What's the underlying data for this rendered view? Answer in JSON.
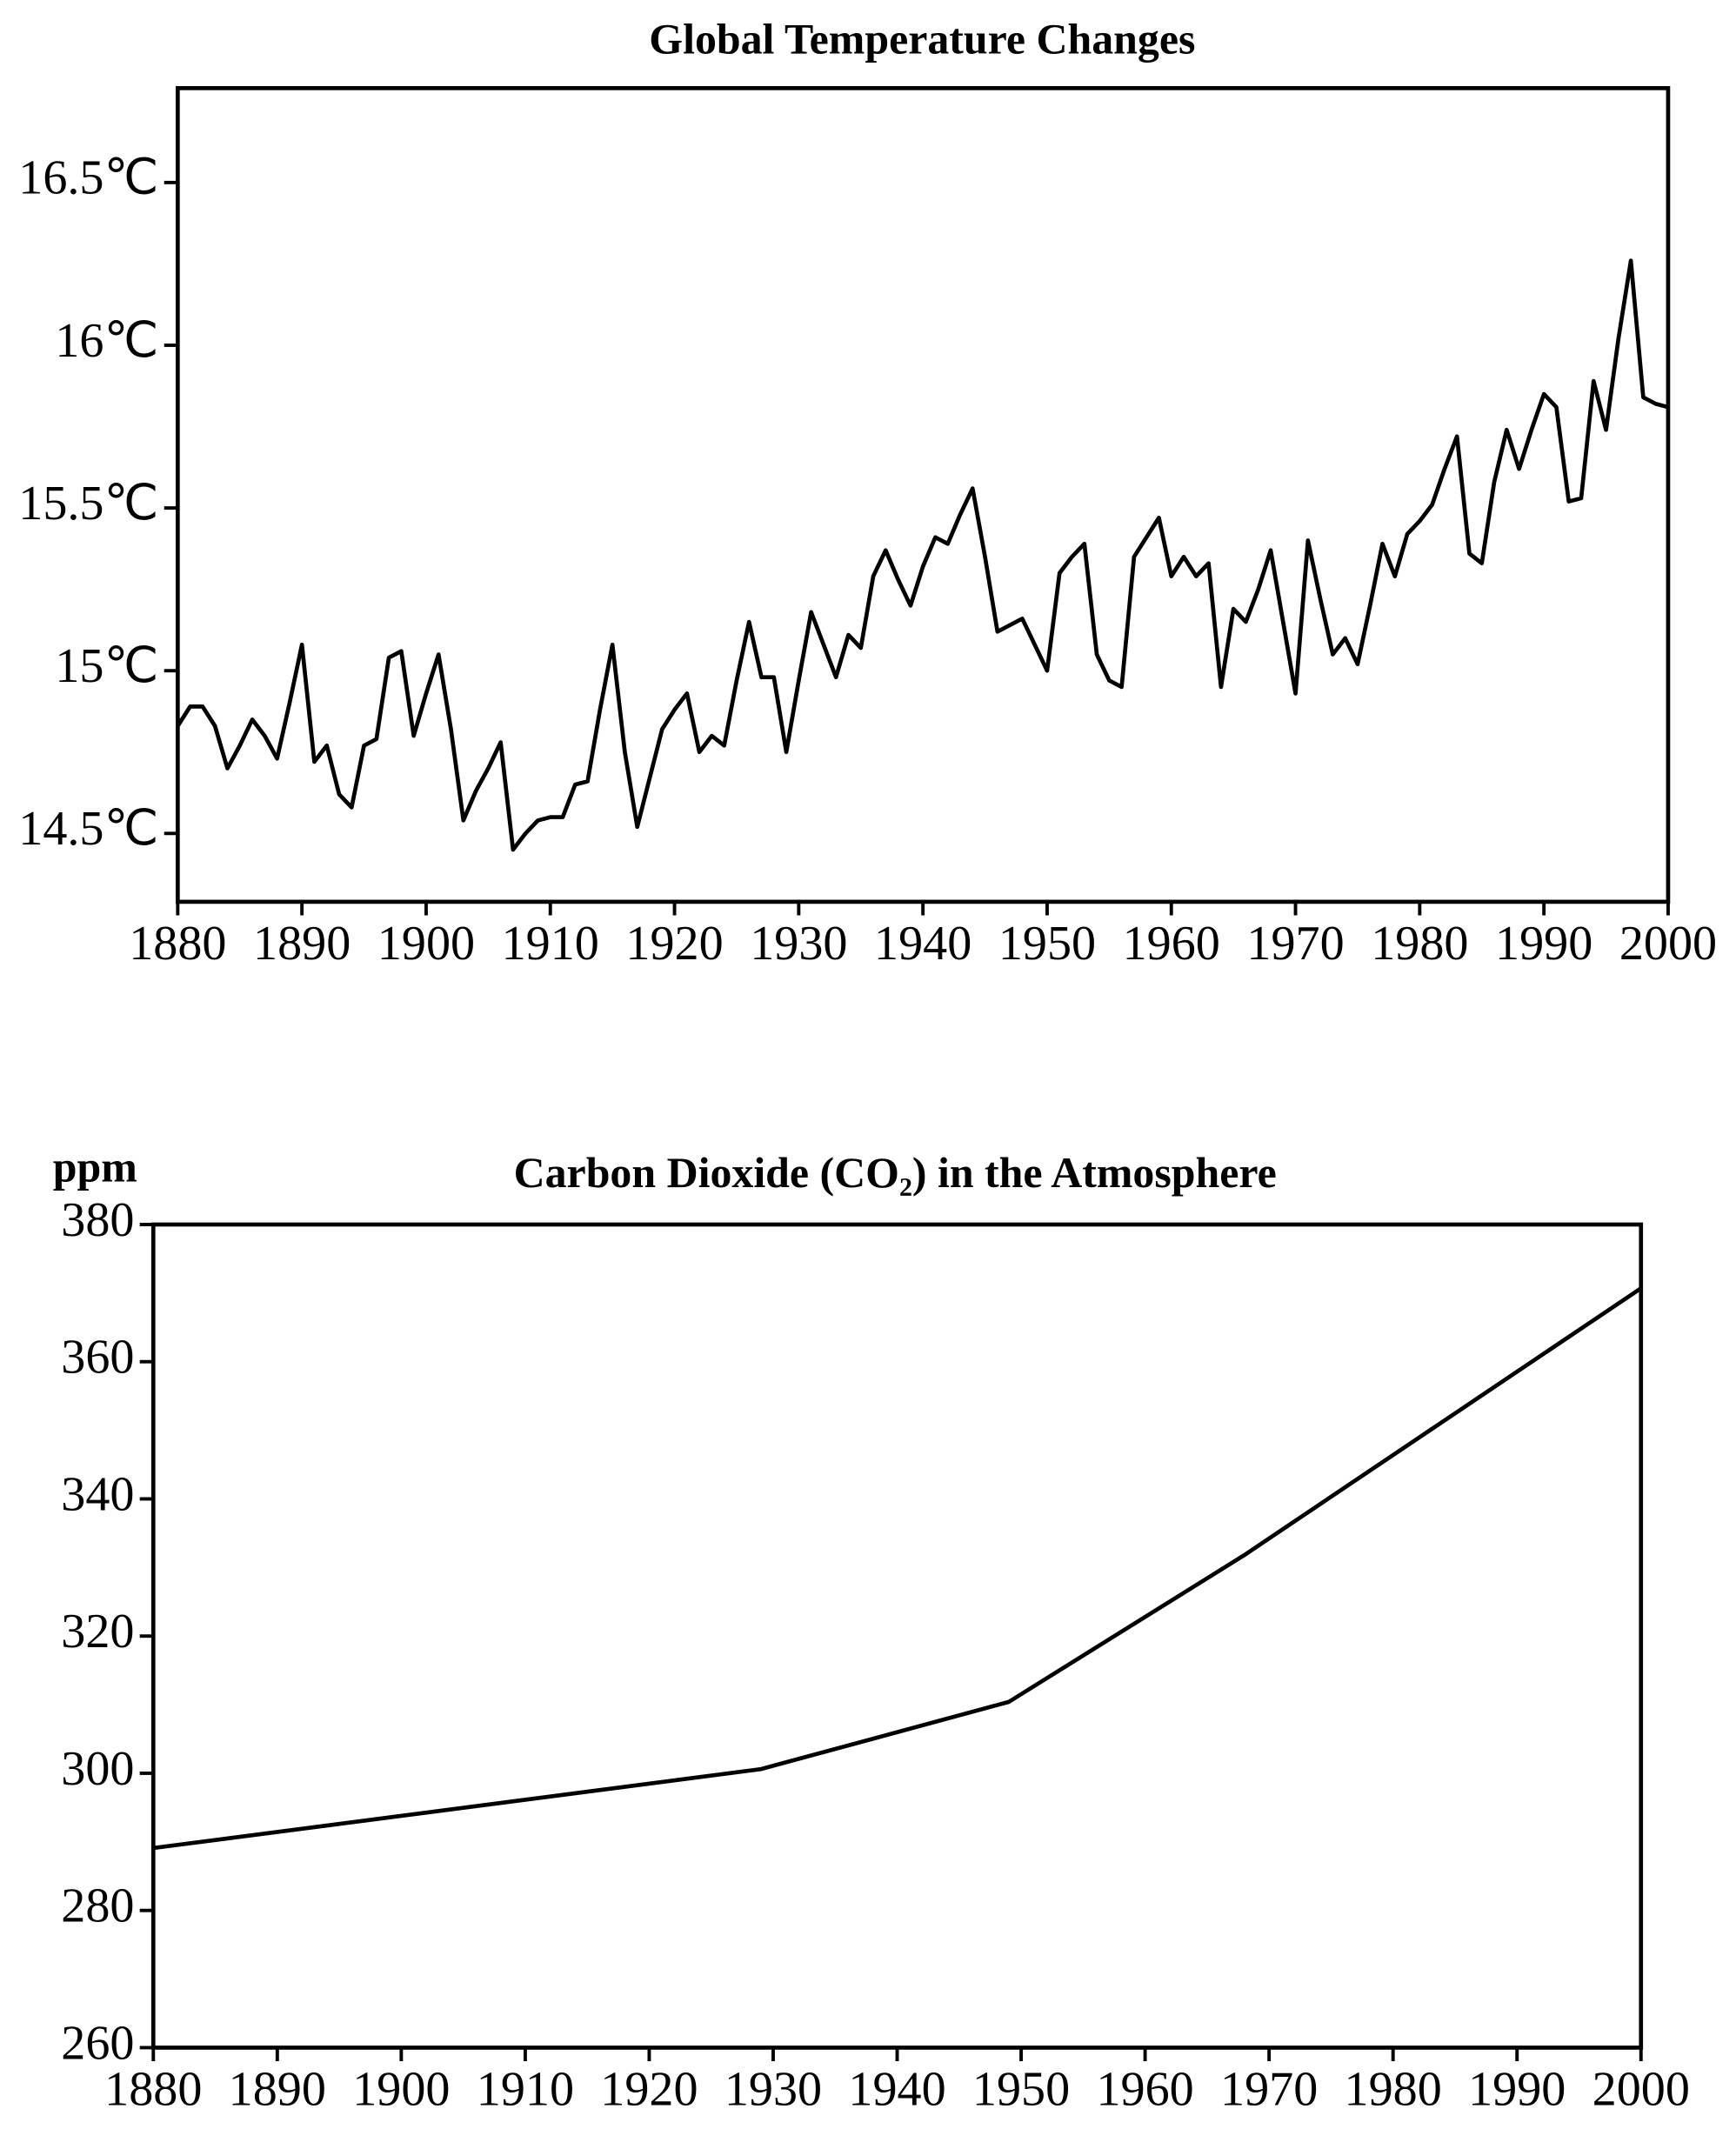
{
  "chart_data": [
    {
      "type": "line",
      "title": "Global Temperature Changes",
      "color": "#000000",
      "x": [
        1880,
        1881,
        1882,
        1883,
        1884,
        1885,
        1886,
        1887,
        1888,
        1889,
        1890,
        1891,
        1892,
        1893,
        1894,
        1895,
        1896,
        1897,
        1898,
        1899,
        1900,
        1901,
        1902,
        1903,
        1904,
        1905,
        1906,
        1907,
        1908,
        1909,
        1910,
        1911,
        1912,
        1913,
        1914,
        1915,
        1916,
        1917,
        1918,
        1919,
        1920,
        1921,
        1922,
        1923,
        1924,
        1925,
        1926,
        1927,
        1928,
        1929,
        1930,
        1931,
        1932,
        1933,
        1934,
        1935,
        1936,
        1937,
        1938,
        1939,
        1940,
        1941,
        1942,
        1943,
        1944,
        1945,
        1946,
        1947,
        1948,
        1949,
        1950,
        1951,
        1952,
        1953,
        1954,
        1955,
        1956,
        1957,
        1958,
        1959,
        1960,
        1961,
        1962,
        1963,
        1964,
        1965,
        1966,
        1967,
        1968,
        1969,
        1970,
        1971,
        1972,
        1973,
        1974,
        1975,
        1976,
        1977,
        1978,
        1979,
        1980,
        1981,
        1982,
        1983,
        1984,
        1985,
        1986,
        1987,
        1988,
        1989,
        1990,
        1991,
        1992,
        1993,
        1994,
        1995,
        1996,
        1997,
        1998,
        1999,
        2000
      ],
      "values": [
        14.83,
        14.89,
        14.89,
        14.83,
        14.7,
        14.77,
        14.85,
        14.8,
        14.73,
        14.9,
        15.08,
        14.72,
        14.77,
        14.62,
        14.58,
        14.77,
        14.79,
        15.04,
        15.06,
        14.8,
        14.93,
        15.05,
        14.82,
        14.54,
        14.63,
        14.7,
        14.78,
        14.45,
        14.5,
        14.54,
        14.55,
        14.55,
        14.65,
        14.66,
        14.88,
        15.08,
        14.75,
        14.52,
        14.67,
        14.82,
        14.88,
        14.93,
        14.75,
        14.8,
        14.77,
        14.97,
        15.15,
        14.98,
        14.98,
        14.75,
        14.97,
        15.18,
        15.08,
        14.98,
        15.11,
        15.07,
        15.29,
        15.37,
        15.28,
        15.2,
        15.32,
        15.41,
        15.39,
        15.48,
        15.56,
        15.35,
        15.12,
        15.14,
        15.16,
        15.08,
        15.0,
        15.3,
        15.35,
        15.39,
        15.05,
        14.97,
        14.95,
        15.35,
        15.41,
        15.47,
        15.29,
        15.35,
        15.29,
        15.33,
        14.95,
        15.19,
        15.15,
        15.25,
        15.37,
        15.15,
        14.93,
        15.4,
        15.22,
        15.05,
        15.1,
        15.02,
        15.2,
        15.39,
        15.29,
        15.42,
        15.46,
        15.51,
        15.62,
        15.72,
        15.36,
        15.33,
        15.58,
        15.74,
        15.62,
        15.74,
        15.85,
        15.81,
        15.52,
        15.53,
        15.89,
        15.74,
        16.02,
        16.26,
        15.84,
        15.82,
        15.81
      ],
      "xlim": [
        1880,
        2000
      ],
      "xticks": [
        1880,
        1890,
        1900,
        1910,
        1920,
        1930,
        1940,
        1950,
        1960,
        1970,
        1980,
        1990,
        2000
      ],
      "ylim": [
        14.29,
        16.79
      ],
      "yticks": [
        {
          "value": 14.5,
          "label": "14.5℃"
        },
        {
          "value": 15,
          "label": "15℃"
        },
        {
          "value": 15.5,
          "label": "15.5℃"
        },
        {
          "value": 16,
          "label": "16℃"
        },
        {
          "value": 16.5,
          "label": "16.5℃"
        }
      ]
    },
    {
      "type": "line",
      "title": "Carbon Dioxide (CO₂) in the Atmosphere",
      "y_label": "ppm",
      "color": "#000000",
      "x": [
        1880,
        1929,
        1949,
        1968,
        2000
      ],
      "values": [
        289.1,
        300.6,
        310.4,
        331.8,
        370.7
      ],
      "xlim": [
        1880,
        2000
      ],
      "xticks": [
        1880,
        1890,
        1900,
        1910,
        1920,
        1930,
        1940,
        1950,
        1960,
        1970,
        1980,
        1990,
        2000
      ],
      "ylim": [
        260,
        380
      ],
      "yticks": [
        260,
        280,
        300,
        320,
        340,
        360,
        380
      ]
    }
  ]
}
